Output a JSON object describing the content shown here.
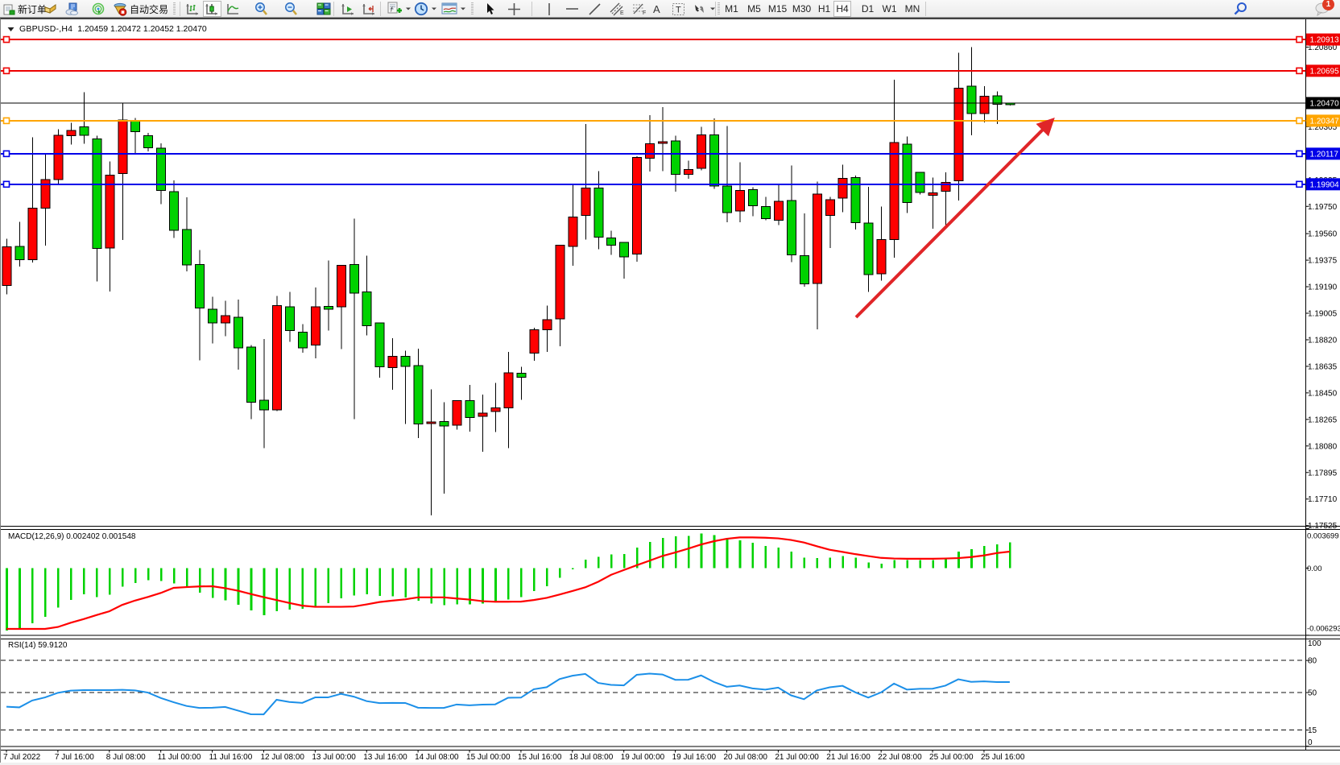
{
  "window": {
    "title_symbol": "GBPUSD-,H4",
    "title_ohlc": "1.20459 1.20472 1.20452 1.20470"
  },
  "toolbar": {
    "new_order_label": "新订单",
    "autotrading_label": "自动交易",
    "timeframes": [
      "M1",
      "M5",
      "M15",
      "M30",
      "H1",
      "H4",
      "D1",
      "W1",
      "MN"
    ],
    "active_timeframe": "H4",
    "notification_count": "1"
  },
  "chart_data": {
    "type": "candlestick",
    "symbol": "GBPUSD-",
    "timeframe": "H4",
    "candles_ohlc": [
      [
        1.19469,
        1.19523,
        1.19138,
        1.192
      ],
      [
        1.19379,
        1.19641,
        1.19331,
        1.19472
      ],
      [
        1.19738,
        1.2023,
        1.19358,
        1.19377
      ],
      [
        1.19938,
        1.20115,
        1.19476,
        1.19738
      ],
      [
        1.20245,
        1.20287,
        1.19907,
        1.19938
      ],
      [
        1.20279,
        1.20332,
        1.20181,
        1.20243
      ],
      [
        1.20245,
        1.20547,
        1.20186,
        1.20304
      ],
      [
        1.19456,
        1.20244,
        1.19228,
        1.20221
      ],
      [
        1.19968,
        1.20062,
        1.19157,
        1.1946
      ],
      [
        1.20351,
        1.20473,
        1.19517,
        1.19979
      ],
      [
        1.2027,
        1.20367,
        1.20114,
        1.20348
      ],
      [
        1.20159,
        1.20261,
        1.20134,
        1.20242
      ],
      [
        1.1986,
        1.2019,
        1.19766,
        1.20155
      ],
      [
        1.19583,
        1.19931,
        1.19529,
        1.19852
      ],
      [
        1.19341,
        1.19813,
        1.19297,
        1.19589
      ],
      [
        1.19042,
        1.19447,
        1.18677,
        1.19346
      ],
      [
        1.18938,
        1.1912,
        1.18795,
        1.19034
      ],
      [
        1.18989,
        1.19093,
        1.18846,
        1.18938
      ],
      [
        1.18763,
        1.19101,
        1.18613,
        1.18976
      ],
      [
        1.18384,
        1.18782,
        1.18267,
        1.18769
      ],
      [
        1.18332,
        1.18825,
        1.18065,
        1.18399
      ],
      [
        1.19059,
        1.19125,
        1.18323,
        1.18332
      ],
      [
        1.18885,
        1.19153,
        1.18807,
        1.19049
      ],
      [
        1.18763,
        1.1893,
        1.18729,
        1.18873
      ],
      [
        1.19049,
        1.19185,
        1.1869,
        1.18782
      ],
      [
        1.19034,
        1.19372,
        1.18885,
        1.19054
      ],
      [
        1.1934,
        1.1934,
        1.18755,
        1.19049
      ],
      [
        1.19145,
        1.19665,
        1.18267,
        1.19346
      ],
      [
        1.18919,
        1.19405,
        1.18852,
        1.19153
      ],
      [
        1.18633,
        1.18938,
        1.18555,
        1.18938
      ],
      [
        1.18705,
        1.18832,
        1.18471,
        1.18625
      ],
      [
        1.18636,
        1.18745,
        1.18233,
        1.18705
      ],
      [
        1.18233,
        1.18759,
        1.18136,
        1.1864
      ],
      [
        1.18248,
        1.18474,
        1.17595,
        1.18237
      ],
      [
        1.18218,
        1.18384,
        1.17749,
        1.18251
      ],
      [
        1.18397,
        1.18397,
        1.18195,
        1.18225
      ],
      [
        1.18279,
        1.18505,
        1.18179,
        1.18397
      ],
      [
        1.1831,
        1.18437,
        1.18041,
        1.18287
      ],
      [
        1.18345,
        1.1852,
        1.18176,
        1.1832
      ],
      [
        1.18591,
        1.18736,
        1.18064,
        1.18345
      ],
      [
        1.1856,
        1.18632,
        1.18402,
        1.18586
      ],
      [
        1.18889,
        1.18903,
        1.18674,
        1.18728
      ],
      [
        1.18961,
        1.19057,
        1.18735,
        1.18889
      ],
      [
        1.19479,
        1.19482,
        1.18774,
        1.18965
      ],
      [
        1.19677,
        1.19904,
        1.19337,
        1.1947
      ],
      [
        1.19877,
        1.20323,
        1.19518,
        1.19688
      ],
      [
        1.19535,
        1.19996,
        1.19452,
        1.19877
      ],
      [
        1.19479,
        1.19581,
        1.19411,
        1.19529
      ],
      [
        1.19399,
        1.195,
        1.19245,
        1.195
      ],
      [
        1.2009,
        1.20099,
        1.19364,
        1.19417
      ],
      [
        1.20187,
        1.20387,
        1.19993,
        1.20086
      ],
      [
        1.20201,
        1.20442,
        1.19997,
        1.20188
      ],
      [
        1.19972,
        1.20244,
        1.19852,
        1.20206
      ],
      [
        1.20007,
        1.20068,
        1.19943,
        1.19972
      ],
      [
        1.20249,
        1.20305,
        1.20001,
        1.20015
      ],
      [
        1.19892,
        1.20363,
        1.19871,
        1.20247
      ],
      [
        1.19707,
        1.20309,
        1.19638,
        1.19892
      ],
      [
        1.1986,
        1.20057,
        1.19639,
        1.19717
      ],
      [
        1.19754,
        1.19884,
        1.1968,
        1.19866
      ],
      [
        1.19665,
        1.19817,
        1.19653,
        1.19748
      ],
      [
        1.19785,
        1.19908,
        1.19621,
        1.19653
      ],
      [
        1.19413,
        1.20036,
        1.19362,
        1.1979
      ],
      [
        1.1921,
        1.197,
        1.1919,
        1.19407
      ],
      [
        1.19837,
        1.19924,
        1.18892,
        1.19213
      ],
      [
        1.19796,
        1.19815,
        1.19461,
        1.19686
      ],
      [
        1.19945,
        1.2004,
        1.1971,
        1.19809
      ],
      [
        1.19636,
        1.19965,
        1.19589,
        1.19952
      ],
      [
        1.19274,
        1.19886,
        1.19155,
        1.19634
      ],
      [
        1.19519,
        1.19748,
        1.19232,
        1.19279
      ],
      [
        1.20195,
        1.20633,
        1.19391,
        1.19519
      ],
      [
        1.19777,
        1.20236,
        1.19703,
        1.20185
      ],
      [
        1.19848,
        1.19988,
        1.19833,
        1.19988
      ],
      [
        1.19844,
        1.19952,
        1.19594,
        1.19828
      ],
      [
        1.19917,
        1.19986,
        1.1961,
        1.19855
      ],
      [
        1.20575,
        1.2082,
        1.19791,
        1.19927
      ],
      [
        1.20398,
        1.2086,
        1.20246,
        1.20588
      ],
      [
        1.20518,
        1.20588,
        1.20335,
        1.20396
      ],
      [
        1.20461,
        1.20552,
        1.20325,
        1.2052
      ],
      [
        1.20459,
        1.20472,
        1.20452,
        1.2047
      ]
    ],
    "price_axis_ticks": [
      "1.20860",
      "1.20675",
      "1.20490",
      "1.20305",
      "1.20120",
      "1.19935",
      "1.19750",
      "1.19560",
      "1.19375",
      "1.19190",
      "1.19005",
      "1.18820",
      "1.18635",
      "1.18450",
      "1.18265",
      "1.18080",
      "1.17895",
      "1.17710",
      "1.17525"
    ],
    "horizontal_lines": [
      {
        "price": 1.20913,
        "label": "1.20913",
        "color": "#ee0000",
        "width": 2,
        "anchors": true
      },
      {
        "price": 1.20695,
        "label": "1.20695",
        "color": "#ee0000",
        "width": 2,
        "anchors": true
      },
      {
        "price": 1.20347,
        "label": "1.20347",
        "color": "#ffa500",
        "width": 2,
        "anchors": true
      },
      {
        "price": 1.20117,
        "label": "1.20117",
        "color": "#0000e8",
        "width": 2,
        "anchors": true
      },
      {
        "price": 1.19904,
        "label": "1.19904",
        "color": "#0000e8",
        "width": 2,
        "anchors": true
      }
    ],
    "bid_line": {
      "price": 1.2047,
      "label": "1.20470",
      "color": "#000000",
      "width": 1
    },
    "trend_arrow": {
      "from_index": 66.05,
      "from_price": 1.18977,
      "to_index": 81.5,
      "to_price": 1.20369,
      "color": "#e02528"
    },
    "colors": {
      "up": "#00d200",
      "down": "#ff0000",
      "outline": "#000000",
      "macd_hist": "#00d200",
      "macd_signal": "#ff0000",
      "rsi_line": "#1b8fe8"
    },
    "macd": {
      "label": "MACD(12,26,9)",
      "value_main": "0.002402",
      "value_signal": "0.001548",
      "histogram": [
        -0.00587,
        -0.00567,
        -0.00516,
        -0.00455,
        -0.0037,
        -0.003,
        -0.00245,
        -0.00273,
        -0.00248,
        -0.00175,
        -0.0014,
        -0.00115,
        -0.0012,
        -0.00145,
        -0.00176,
        -0.00232,
        -0.00278,
        -0.00303,
        -0.00342,
        -0.00397,
        -0.00442,
        -0.00404,
        -0.00389,
        -0.00383,
        -0.0036,
        -0.0033,
        -0.00285,
        -0.00257,
        -0.00245,
        -0.00259,
        -0.00264,
        -0.00274,
        -0.00305,
        -0.00331,
        -0.00346,
        -0.00338,
        -0.00338,
        -0.00331,
        -0.00319,
        -0.00293,
        -0.0027,
        -0.00214,
        -0.00169,
        -0.00091,
        -0.0001,
        0.00078,
        0.00107,
        0.00127,
        0.00131,
        0.00191,
        0.00247,
        0.00284,
        0.00298,
        0.00302,
        0.00324,
        0.00308,
        0.0028,
        0.00261,
        0.00239,
        0.00208,
        0.00192,
        0.00153,
        0.001,
        0.00094,
        0.001,
        0.00115,
        0.001,
        0.00053,
        0.00043,
        0.00076,
        0.00076,
        0.00074,
        0.00076,
        0.001,
        0.00153,
        0.00177,
        0.00208,
        0.00224,
        0.0024
      ],
      "signal": [
        -0.0057,
        -0.0057,
        -0.0057,
        -0.0057,
        -0.00552,
        -0.00512,
        -0.00478,
        -0.0044,
        -0.00405,
        -0.00345,
        -0.00304,
        -0.0027,
        -0.00233,
        -0.00185,
        -0.00178,
        -0.00172,
        -0.0017,
        -0.00188,
        -0.00212,
        -0.00243,
        -0.00272,
        -0.003,
        -0.00327,
        -0.00352,
        -0.00363,
        -0.00363,
        -0.00363,
        -0.0036,
        -0.0034,
        -0.00318,
        -0.00305,
        -0.00293,
        -0.00274,
        -0.00274,
        -0.00274,
        -0.00285,
        -0.00295,
        -0.0031,
        -0.00315,
        -0.00315,
        -0.00314,
        -0.00299,
        -0.00279,
        -0.00248,
        -0.00215,
        -0.0018,
        -0.00128,
        -0.00063,
        -0.00018,
        0.00027,
        0.0007,
        0.00114,
        0.00147,
        0.00183,
        0.00221,
        0.00252,
        0.00275,
        0.00288,
        0.00288,
        0.00285,
        0.00279,
        0.00264,
        0.0024,
        0.00205,
        0.00172,
        0.00152,
        0.00131,
        0.00113,
        0.00096,
        0.0009,
        0.00088,
        0.00088,
        0.00088,
        0.0009,
        0.00094,
        0.00104,
        0.00119,
        0.00141,
        0.00155
      ],
      "axis_labels": [
        "0.003699",
        "0.00",
        "-0.006293"
      ],
      "axis_values": [
        0.003699,
        0.0,
        -0.006293
      ]
    },
    "rsi": {
      "label": "RSI(14)",
      "value": "59.9120",
      "values": [
        36.8,
        36.2,
        42.6,
        45.5,
        49.8,
        51.8,
        52.3,
        52.3,
        52.3,
        52.6,
        52.0,
        50.0,
        44.9,
        41.0,
        37.5,
        35.7,
        35.9,
        36.6,
        33.2,
        29.8,
        29.7,
        43.3,
        41.2,
        40.4,
        45.5,
        45.5,
        48.8,
        46.2,
        42.0,
        40.2,
        40.4,
        40.3,
        35.9,
        35.7,
        35.7,
        38.9,
        38.1,
        38.8,
        39.0,
        45.2,
        45.3,
        53.1,
        55.0,
        62.6,
        65.7,
        67.4,
        59.0,
        57.2,
        56.7,
        66.6,
        67.7,
        66.9,
        61.9,
        62.0,
        66.0,
        59.9,
        55.4,
        56.6,
        53.9,
        52.8,
        54.6,
        47.4,
        43.8,
        52.0,
        54.9,
        56.3,
        50.2,
        45.3,
        50.2,
        58.4,
        52.8,
        53.5,
        53.6,
        56.5,
        62.4,
        60.0,
        60.5,
        59.8,
        59.8
      ],
      "levels": [
        80,
        50,
        15
      ],
      "axis_labels": [
        "100",
        "80",
        "50",
        "15",
        "0"
      ],
      "axis_values": [
        100,
        80,
        50,
        15,
        0
      ]
    },
    "time_axis": [
      {
        "label": "7 Jul 2022",
        "index": 0
      },
      {
        "label": "7 Jul 16:00",
        "index": 4
      },
      {
        "label": "8 Jul 08:00",
        "index": 8
      },
      {
        "label": "11 Jul 00:00",
        "index": 12
      },
      {
        "label": "11 Jul 16:00",
        "index": 16
      },
      {
        "label": "12 Jul 08:00",
        "index": 20
      },
      {
        "label": "13 Jul 00:00",
        "index": 24
      },
      {
        "label": "13 Jul 16:00",
        "index": 28
      },
      {
        "label": "14 Jul 08:00",
        "index": 32
      },
      {
        "label": "15 Jul 00:00",
        "index": 36
      },
      {
        "label": "15 Jul 16:00",
        "index": 40
      },
      {
        "label": "18 Jul 08:00",
        "index": 44
      },
      {
        "label": "19 Jul 00:00",
        "index": 48
      },
      {
        "label": "19 Jul 16:00",
        "index": 52
      },
      {
        "label": "20 Jul 08:00",
        "index": 56
      },
      {
        "label": "21 Jul 00:00",
        "index": 60
      },
      {
        "label": "21 Jul 16:00",
        "index": 64
      },
      {
        "label": "22 Jul 08:00",
        "index": 68
      },
      {
        "label": "25 Jul 00:00",
        "index": 72
      },
      {
        "label": "25 Jul 16:00",
        "index": 76
      }
    ]
  }
}
